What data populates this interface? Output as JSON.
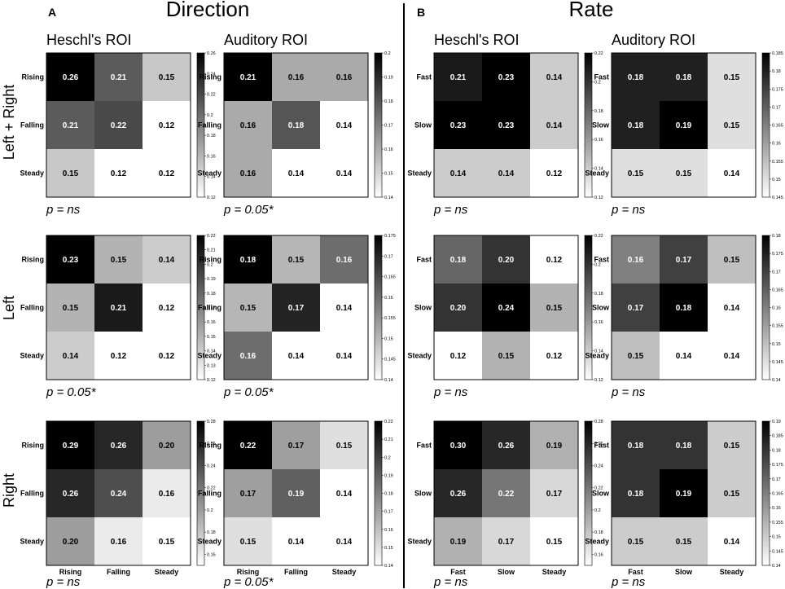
{
  "figure": {
    "panel_a_label": "A",
    "panel_b_label": "B",
    "section_a_title": "Direction",
    "section_b_title": "Rate",
    "roi_titles": [
      "Heschl's ROI",
      "Auditory ROI"
    ],
    "row_titles": [
      "Left + Right",
      "Left",
      "Right"
    ]
  },
  "chart_data": [
    {
      "type": "heatmap",
      "section": "Direction",
      "roi": "Heschl's ROI",
      "hemisphere": "Left + Right",
      "labels": [
        "Rising",
        "Falling",
        "Steady"
      ],
      "values": [
        [
          0.26,
          0.21,
          0.15
        ],
        [
          0.21,
          0.22,
          0.12
        ],
        [
          0.15,
          0.12,
          0.12
        ]
      ],
      "colorbar_ticks": [
        "0.26",
        "0.24",
        "0.22",
        "0.2",
        "0.18",
        "0.16",
        "0.14",
        "0.12"
      ],
      "vmin": 0.12,
      "vmax": 0.26,
      "p_label": "p = ns"
    },
    {
      "type": "heatmap",
      "section": "Direction",
      "roi": "Auditory ROI",
      "hemisphere": "Left + Right",
      "labels": [
        "Rising",
        "Falling",
        "Steady"
      ],
      "values": [
        [
          0.21,
          0.16,
          0.16
        ],
        [
          0.16,
          0.18,
          0.14
        ],
        [
          0.16,
          0.14,
          0.14
        ]
      ],
      "colorbar_ticks": [
        "0.2",
        "0.19",
        "0.18",
        "0.17",
        "0.16",
        "0.15",
        "0.14"
      ],
      "vmin": 0.14,
      "vmax": 0.2,
      "p_label": "p = 0.05*"
    },
    {
      "type": "heatmap",
      "section": "Rate",
      "roi": "Heschl's ROI",
      "hemisphere": "Left + Right",
      "labels": [
        "Fast",
        "Slow",
        "Steady"
      ],
      "values": [
        [
          0.21,
          0.23,
          0.14
        ],
        [
          0.23,
          0.23,
          0.14
        ],
        [
          0.14,
          0.14,
          0.12
        ]
      ],
      "colorbar_ticks": [
        "0.22",
        "0.2",
        "0.18",
        "0.16",
        "0.14",
        "0.12"
      ],
      "vmin": 0.12,
      "vmax": 0.22,
      "p_label": "p = ns"
    },
    {
      "type": "heatmap",
      "section": "Rate",
      "roi": "Auditory ROI",
      "hemisphere": "Left + Right",
      "labels": [
        "Fast",
        "Slow",
        "Steady"
      ],
      "values": [
        [
          0.18,
          0.18,
          0.15
        ],
        [
          0.18,
          0.19,
          0.15
        ],
        [
          0.15,
          0.15,
          0.14
        ]
      ],
      "colorbar_ticks": [
        "0.185",
        "0.18",
        "0.175",
        "0.17",
        "0.165",
        "0.16",
        "0.155",
        "0.15",
        "0.145"
      ],
      "vmin": 0.145,
      "vmax": 0.185,
      "p_label": "p = ns"
    },
    {
      "type": "heatmap",
      "section": "Direction",
      "roi": "Heschl's ROI",
      "hemisphere": "Left",
      "labels": [
        "Rising",
        "Falling",
        "Steady"
      ],
      "values": [
        [
          0.23,
          0.15,
          0.14
        ],
        [
          0.15,
          0.21,
          0.12
        ],
        [
          0.14,
          0.12,
          0.12
        ]
      ],
      "colorbar_ticks": [
        "0.22",
        "0.21",
        "0.2",
        "0.19",
        "0.18",
        "0.17",
        "0.16",
        "0.15",
        "0.14",
        "0.13",
        "0.12"
      ],
      "vmin": 0.12,
      "vmax": 0.22,
      "p_label": "p = 0.05*"
    },
    {
      "type": "heatmap",
      "section": "Direction",
      "roi": "Auditory ROI",
      "hemisphere": "Left",
      "labels": [
        "Rising",
        "Falling",
        "Steady"
      ],
      "values": [
        [
          0.18,
          0.15,
          0.16
        ],
        [
          0.15,
          0.17,
          0.14
        ],
        [
          0.16,
          0.14,
          0.14
        ]
      ],
      "colorbar_ticks": [
        "0.175",
        "0.17",
        "0.165",
        "0.16",
        "0.155",
        "0.15",
        "0.145",
        "0.14"
      ],
      "vmin": 0.14,
      "vmax": 0.175,
      "p_label": "p = 0.05*"
    },
    {
      "type": "heatmap",
      "section": "Rate",
      "roi": "Heschl's ROI",
      "hemisphere": "Left",
      "labels": [
        "Fast",
        "Slow",
        "Steady"
      ],
      "values": [
        [
          0.18,
          0.2,
          0.12
        ],
        [
          0.2,
          0.24,
          0.15
        ],
        [
          0.12,
          0.15,
          0.12
        ]
      ],
      "colorbar_ticks": [
        "0.22",
        "0.2",
        "0.18",
        "0.16",
        "0.14",
        "0.12"
      ],
      "vmin": 0.12,
      "vmax": 0.22,
      "p_label": "p = ns"
    },
    {
      "type": "heatmap",
      "section": "Rate",
      "roi": "Auditory ROI",
      "hemisphere": "Left",
      "labels": [
        "Fast",
        "Slow",
        "Steady"
      ],
      "values": [
        [
          0.16,
          0.17,
          0.15
        ],
        [
          0.17,
          0.18,
          0.14
        ],
        [
          0.15,
          0.14,
          0.14
        ]
      ],
      "colorbar_ticks": [
        "0.18",
        "0.175",
        "0.17",
        "0.165",
        "0.16",
        "0.155",
        "0.15",
        "0.145",
        "0.14"
      ],
      "vmin": 0.14,
      "vmax": 0.18,
      "p_label": "p = ns"
    },
    {
      "type": "heatmap",
      "section": "Direction",
      "roi": "Heschl's ROI",
      "hemisphere": "Right",
      "labels": [
        "Rising",
        "Falling",
        "Steady"
      ],
      "values": [
        [
          0.29,
          0.26,
          0.2
        ],
        [
          0.26,
          0.24,
          0.16
        ],
        [
          0.2,
          0.16,
          0.15
        ]
      ],
      "colorbar_ticks": [
        "0.28",
        "0.26",
        "0.24",
        "0.22",
        "0.2",
        "0.18",
        "0.16"
      ],
      "vmin": 0.15,
      "vmax": 0.28,
      "p_label": "p = ns"
    },
    {
      "type": "heatmap",
      "section": "Direction",
      "roi": "Auditory ROI",
      "hemisphere": "Right",
      "labels": [
        "Rising",
        "Falling",
        "Steady"
      ],
      "values": [
        [
          0.22,
          0.17,
          0.15
        ],
        [
          0.17,
          0.19,
          0.14
        ],
        [
          0.15,
          0.14,
          0.14
        ]
      ],
      "colorbar_ticks": [
        "0.22",
        "0.21",
        "0.2",
        "0.19",
        "0.18",
        "0.17",
        "0.16",
        "0.15",
        "0.14"
      ],
      "vmin": 0.14,
      "vmax": 0.22,
      "p_label": "p = 0.05*"
    },
    {
      "type": "heatmap",
      "section": "Rate",
      "roi": "Heschl's ROI",
      "hemisphere": "Right",
      "labels": [
        "Fast",
        "Slow",
        "Steady"
      ],
      "values": [
        [
          0.3,
          0.26,
          0.19
        ],
        [
          0.26,
          0.22,
          0.17
        ],
        [
          0.19,
          0.17,
          0.15
        ]
      ],
      "colorbar_ticks": [
        "0.28",
        "0.26",
        "0.24",
        "0.22",
        "0.2",
        "0.18",
        "0.16"
      ],
      "vmin": 0.15,
      "vmax": 0.28,
      "p_label": "p = ns"
    },
    {
      "type": "heatmap",
      "section": "Rate",
      "roi": "Auditory ROI",
      "hemisphere": "Right",
      "labels": [
        "Fast",
        "Slow",
        "Steady"
      ],
      "values": [
        [
          0.18,
          0.18,
          0.15
        ],
        [
          0.18,
          0.19,
          0.15
        ],
        [
          0.15,
          0.15,
          0.14
        ]
      ],
      "colorbar_ticks": [
        "0.19",
        "0.185",
        "0.18",
        "0.175",
        "0.17",
        "0.165",
        "0.16",
        "0.155",
        "0.15",
        "0.145",
        "0.14"
      ],
      "vmin": 0.14,
      "vmax": 0.19,
      "p_label": "p = ns"
    }
  ]
}
